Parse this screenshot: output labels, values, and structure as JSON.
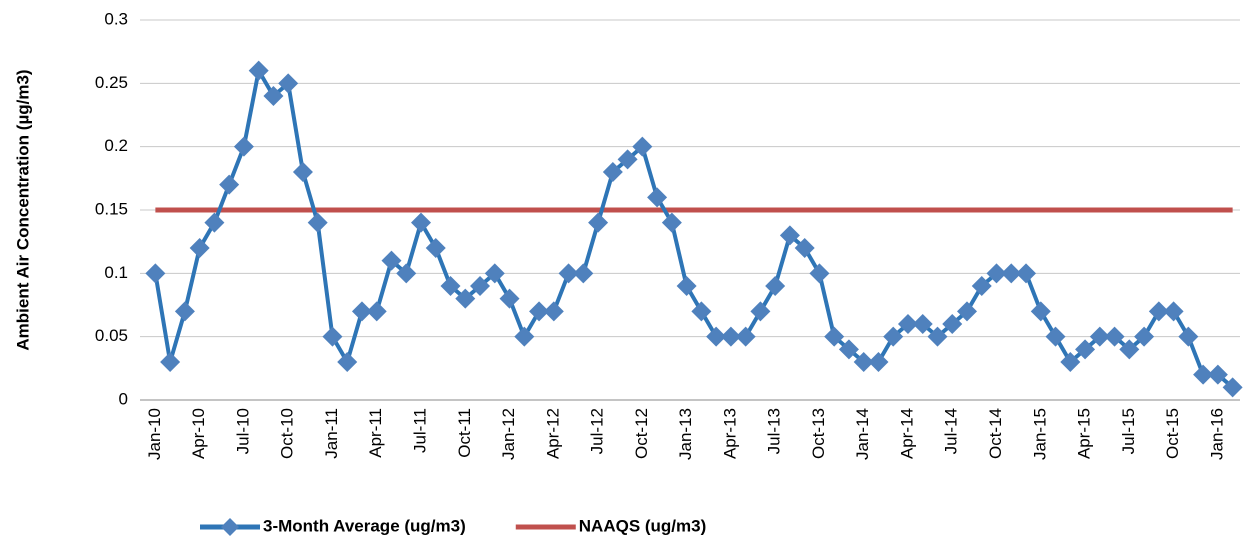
{
  "chart_data": {
    "type": "line",
    "y_label": "Ambient Air Concentration (µg/m3)",
    "categories": [
      "Jan-10",
      null,
      null,
      "Apr-10",
      null,
      null,
      "Jul-10",
      null,
      null,
      "Oct-10",
      null,
      null,
      "Jan-11",
      null,
      null,
      "Apr-11",
      null,
      null,
      "Jul-11",
      null,
      null,
      "Oct-11",
      null,
      null,
      "Jan-12",
      null,
      null,
      "Apr-12",
      null,
      null,
      "Jul-12",
      null,
      null,
      "Oct-12",
      null,
      null,
      "Jan-13",
      null,
      null,
      "Apr-13",
      null,
      null,
      "Jul-13",
      null,
      null,
      "Oct-13",
      null,
      null,
      "Jan-14",
      null,
      null,
      "Apr-14",
      null,
      null,
      "Jul-14",
      null,
      null,
      "Oct-14",
      null,
      null,
      "Jan-15",
      null,
      null,
      "Apr-15",
      null,
      null,
      "Jul-15",
      null,
      null,
      "Oct-15",
      null,
      null,
      "Jan-16",
      null
    ],
    "series": [
      {
        "name": "3-Month Average (ug/m3)",
        "color": "#2e75b6",
        "marker_color": "#4f81bd",
        "marker": "diamond",
        "values": [
          0.1,
          0.03,
          0.07,
          0.12,
          0.14,
          0.17,
          0.2,
          0.26,
          0.24,
          0.25,
          0.18,
          0.14,
          0.05,
          0.03,
          0.07,
          0.07,
          0.11,
          0.1,
          0.14,
          0.12,
          0.09,
          0.08,
          0.09,
          0.1,
          0.08,
          0.05,
          0.07,
          0.07,
          0.1,
          0.1,
          0.14,
          0.18,
          0.19,
          0.2,
          0.16,
          0.14,
          0.09,
          0.07,
          0.05,
          0.05,
          0.05,
          0.07,
          0.09,
          0.13,
          0.12,
          0.1,
          0.05,
          0.04,
          0.03,
          0.03,
          0.05,
          0.06,
          0.06,
          0.05,
          0.06,
          0.07,
          0.09,
          0.1,
          0.1,
          0.1,
          0.07,
          0.05,
          0.03,
          0.04,
          0.05,
          0.05,
          0.04,
          0.05,
          0.07,
          0.07,
          0.05,
          0.02,
          0.02,
          0.01
        ]
      },
      {
        "name": "NAAQS (ug/m3)",
        "color": "#c0504d",
        "values": [
          0.15,
          0.15,
          0.15,
          0.15,
          0.15,
          0.15,
          0.15,
          0.15,
          0.15,
          0.15,
          0.15,
          0.15,
          0.15,
          0.15,
          0.15,
          0.15,
          0.15,
          0.15,
          0.15,
          0.15,
          0.15,
          0.15,
          0.15,
          0.15,
          0.15,
          0.15,
          0.15,
          0.15,
          0.15,
          0.15,
          0.15,
          0.15,
          0.15,
          0.15,
          0.15,
          0.15,
          0.15,
          0.15,
          0.15,
          0.15,
          0.15,
          0.15,
          0.15,
          0.15,
          0.15,
          0.15,
          0.15,
          0.15,
          0.15,
          0.15,
          0.15,
          0.15,
          0.15,
          0.15,
          0.15,
          0.15,
          0.15,
          0.15,
          0.15,
          0.15,
          0.15,
          0.15,
          0.15,
          0.15,
          0.15,
          0.15,
          0.15,
          0.15,
          0.15,
          0.15,
          0.15,
          0.15,
          0.15,
          0.15
        ]
      }
    ],
    "ylim": [
      0,
      0.3
    ],
    "yticks": [
      0,
      0.05,
      0.1,
      0.15,
      0.2,
      0.25,
      0.3
    ],
    "grid": true,
    "legend": "bottom"
  }
}
